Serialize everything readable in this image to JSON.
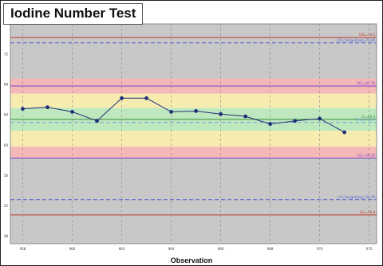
{
  "chart_data": {
    "type": "line",
    "title": "Iodine Number Test",
    "xlabel": "Observation",
    "ylabel": "",
    "x_tick_labels": [
      "958",
      "960",
      "962",
      "964",
      "966",
      "968",
      "970",
      "972"
    ],
    "y_tick_labels": [
      "72",
      "68",
      "64",
      "60",
      "56",
      "52",
      "48"
    ],
    "ylim": [
      47,
      76
    ],
    "x": [
      1,
      2,
      3,
      4,
      5,
      6,
      7,
      8,
      9,
      10,
      11,
      12,
      13,
      14
    ],
    "values": [
      64.8,
      65.0,
      64.4,
      63.2,
      66.2,
      66.2,
      64.4,
      64.5,
      64.1,
      63.8,
      62.8,
      63.2,
      63.5,
      61.7
    ],
    "limits": [
      {
        "name": "usl",
        "label": "USL=74.2",
        "value": 74.2,
        "color": "#c0392b",
        "style": "solid"
      },
      {
        "name": "ucl-range",
        "label": "UCL Range(Avg)=73.48",
        "value": 73.5,
        "color": "#5560d0",
        "style": "dashed"
      },
      {
        "name": "ucl",
        "label": "UCL=67.78",
        "value": 67.8,
        "color": "#7a3fcf",
        "style": "solid"
      },
      {
        "name": "cl",
        "label": "CL=63.4",
        "value": 63.4,
        "color": "#3b8a3b",
        "style": "solid"
      },
      {
        "name": "target",
        "label": "Target=63.0",
        "value": 63.0,
        "color": "#6aa6d6",
        "style": "dashed"
      },
      {
        "name": "lcl",
        "label": "LCL=58.29",
        "value": 58.3,
        "color": "#7a3fcf",
        "style": "solid"
      },
      {
        "name": "lcl-range",
        "label": "LCL Range(Avg)=52.78",
        "value": 52.8,
        "color": "#5560d0",
        "style": "dashed"
      },
      {
        "name": "lsl",
        "label": "LSL=50.8",
        "value": 50.8,
        "color": "#c0392b",
        "style": "solid"
      }
    ],
    "zones": [
      {
        "name": "gray-top",
        "from": 68.8,
        "to": 76,
        "color": "#c8c8c8"
      },
      {
        "name": "red-top",
        "from": 66.8,
        "to": 68.8,
        "color": "#f4b8b8"
      },
      {
        "name": "yellow-top",
        "from": 64.9,
        "to": 66.8,
        "color": "#f6ecb0"
      },
      {
        "name": "green",
        "from": 61.9,
        "to": 64.9,
        "color": "#bfe8bf"
      },
      {
        "name": "yellow-bottom",
        "from": 59.8,
        "to": 61.9,
        "color": "#f6ecb0"
      },
      {
        "name": "red-bottom",
        "from": 58.3,
        "to": 59.8,
        "color": "#f4b8b8"
      },
      {
        "name": "gray-bottom",
        "from": 47,
        "to": 58.3,
        "color": "#c8c8c8"
      }
    ],
    "series_color": "#1f2f7a",
    "grid": true,
    "legend": "none"
  }
}
